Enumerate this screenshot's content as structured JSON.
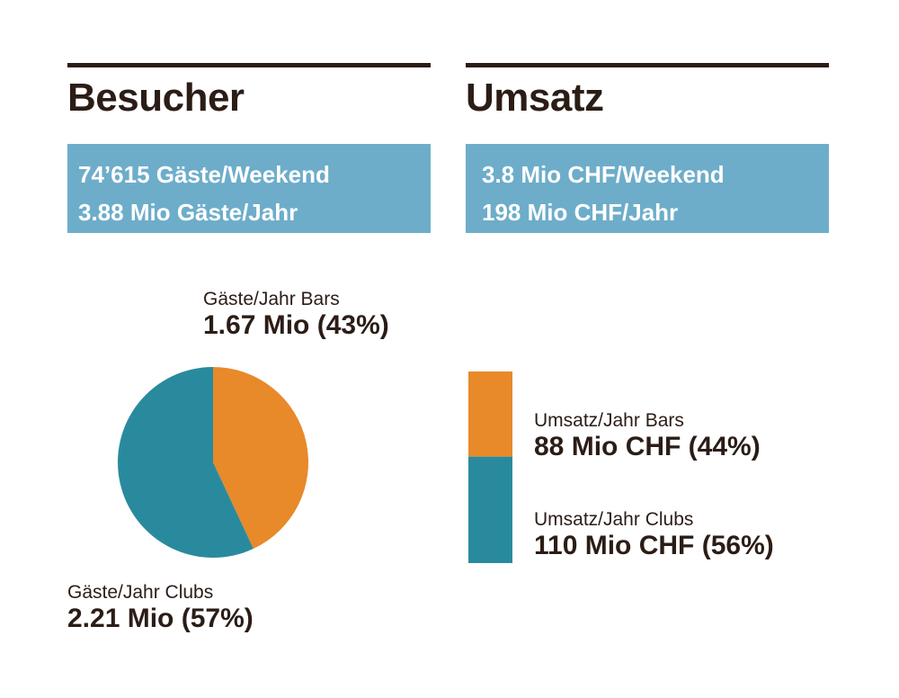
{
  "left": {
    "title": "Besucher",
    "stats": [
      "74’615 Gäste/Weekend",
      "3.88 Mio Gäste/Jahr"
    ]
  },
  "right": {
    "title": "Umsatz",
    "stats": [
      "3.8 Mio CHF/Weekend",
      "198 Mio CHF/Jahr"
    ]
  },
  "colors": {
    "bars": "#e8892a",
    "clubs": "#2a8a9d",
    "box": "#6dadca",
    "text": "#2b1d16"
  },
  "chart_data": [
    {
      "type": "pie",
      "slices": [
        {
          "label": "Gäste/Jahr Bars",
          "value": 1.67,
          "value_label": "1.67 Mio (43%)",
          "percent": 43,
          "color": "#e8892a"
        },
        {
          "label": "Gäste/Jahr Clubs",
          "value": 2.21,
          "value_label": "2.21 Mio (57%)",
          "percent": 57,
          "color": "#2a8a9d"
        }
      ]
    },
    {
      "type": "bar",
      "stacked": true,
      "segments": [
        {
          "label": "Umsatz/Jahr Bars",
          "value": 88,
          "value_label": "88 Mio CHF (44%)",
          "percent": 44,
          "color": "#e8892a"
        },
        {
          "label": "Umsatz/Jahr Clubs",
          "value": 110,
          "value_label": "110 Mio CHF (56%)",
          "percent": 56,
          "color": "#2a8a9d"
        }
      ]
    }
  ]
}
